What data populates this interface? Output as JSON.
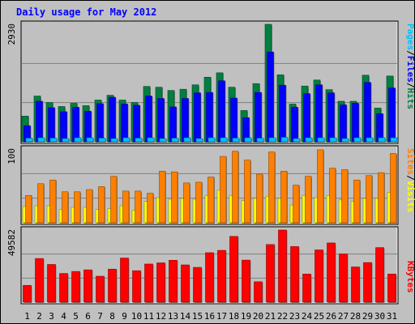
{
  "chart_data": {
    "type": "bar",
    "title": "Daily usage for May 2012",
    "categories": [
      "1",
      "2",
      "3",
      "4",
      "5",
      "6",
      "7",
      "8",
      "9",
      "10",
      "11",
      "12",
      "13",
      "14",
      "15",
      "16",
      "17",
      "18",
      "19",
      "20",
      "21",
      "22",
      "23",
      "24",
      "25",
      "26",
      "27",
      "28",
      "29",
      "30",
      "31"
    ],
    "weekend_categories": [
      "5",
      "6",
      "12",
      "13",
      "19",
      "20",
      "26",
      "27"
    ],
    "panels": [
      {
        "id": "hits-files-pages",
        "ymax_label": "2930",
        "ylim": [
          0,
          2930
        ],
        "legend": [
          {
            "text": "Pages",
            "color": "#00c0ff"
          },
          {
            "text": "Files",
            "color": "#0000ff"
          },
          {
            "text": "Hits",
            "color": "#008040"
          }
        ],
        "series": [
          {
            "name": "Hits",
            "color": "#008040",
            "values": [
              640,
              1140,
              980,
              880,
              960,
              900,
              1040,
              1160,
              1040,
              980,
              1380,
              1360,
              1280,
              1310,
              1420,
              1610,
              1720,
              1360,
              780,
              1450,
              2950,
              1670,
              940,
              1390,
              1540,
              1300,
              1010,
              1010,
              1660,
              840,
              1640
            ]
          },
          {
            "name": "Files",
            "color": "#0000ff",
            "values": [
              400,
              1010,
              850,
              750,
              860,
              760,
              950,
              1110,
              940,
              910,
              1140,
              1080,
              870,
              1080,
              1220,
              1230,
              1520,
              1090,
              600,
              1230,
              2240,
              1410,
              860,
              1200,
              1420,
              1220,
              920,
              960,
              1480,
              700,
              1340
            ]
          },
          {
            "name": "Pages",
            "color": "#00c0ff",
            "values": [
              90,
              100,
              90,
              80,
              100,
              100,
              90,
              80,
              100,
              90,
              100,
              80,
              90,
              100,
              80,
              100,
              100,
              90,
              100,
              90,
              100,
              110,
              80,
              100,
              100,
              100,
              80,
              100,
              100,
              100,
              100
            ]
          }
        ]
      },
      {
        "id": "sites-visits",
        "ymax_label": "100",
        "ylim": [
          0,
          100
        ],
        "legend": [
          {
            "text": "Sites",
            "color": "#ff8000"
          },
          {
            "text": "Visits",
            "color": "#ffff00"
          }
        ],
        "series": [
          {
            "name": "Visits",
            "color": "#ffff00",
            "values": [
              22,
              23,
              23,
              18,
              21,
              21,
              18,
              19,
              23,
              17,
              29,
              34,
              32,
              33,
              32,
              37,
              44,
              37,
              30,
              33,
              36,
              33,
              24,
              37,
              34,
              37,
              31,
              29,
              33,
              33,
              41
            ]
          },
          {
            "name": "Sites",
            "color": "#ff8000",
            "values": [
              37,
              53,
              58,
              42,
              42,
              45,
              49,
              63,
              43,
              43,
              40,
              70,
              69,
              54,
              55,
              62,
              90,
              97,
              85,
              66,
              96,
              70,
              51,
              63,
              99,
              74,
              72,
              58,
              64,
              68,
              94
            ]
          }
        ]
      },
      {
        "id": "kbytes",
        "ymax_label": "49582",
        "ylim": [
          0,
          49582
        ],
        "legend": [
          {
            "text": "KBytes",
            "color": "#ff0000"
          }
        ],
        "series": [
          {
            "name": "KBytes",
            "color": "#ff0000",
            "values": [
              11500,
              30000,
              25900,
              19700,
              21100,
              22200,
              17800,
              22700,
              30300,
              21600,
              26200,
              27000,
              28800,
              25600,
              23900,
              34000,
              35600,
              45200,
              28900,
              14000,
              39600,
              49600,
              38200,
              19300,
              35900,
              40700,
              33100,
              24200,
              27200,
              37500,
              19300
            ]
          }
        ]
      }
    ]
  }
}
